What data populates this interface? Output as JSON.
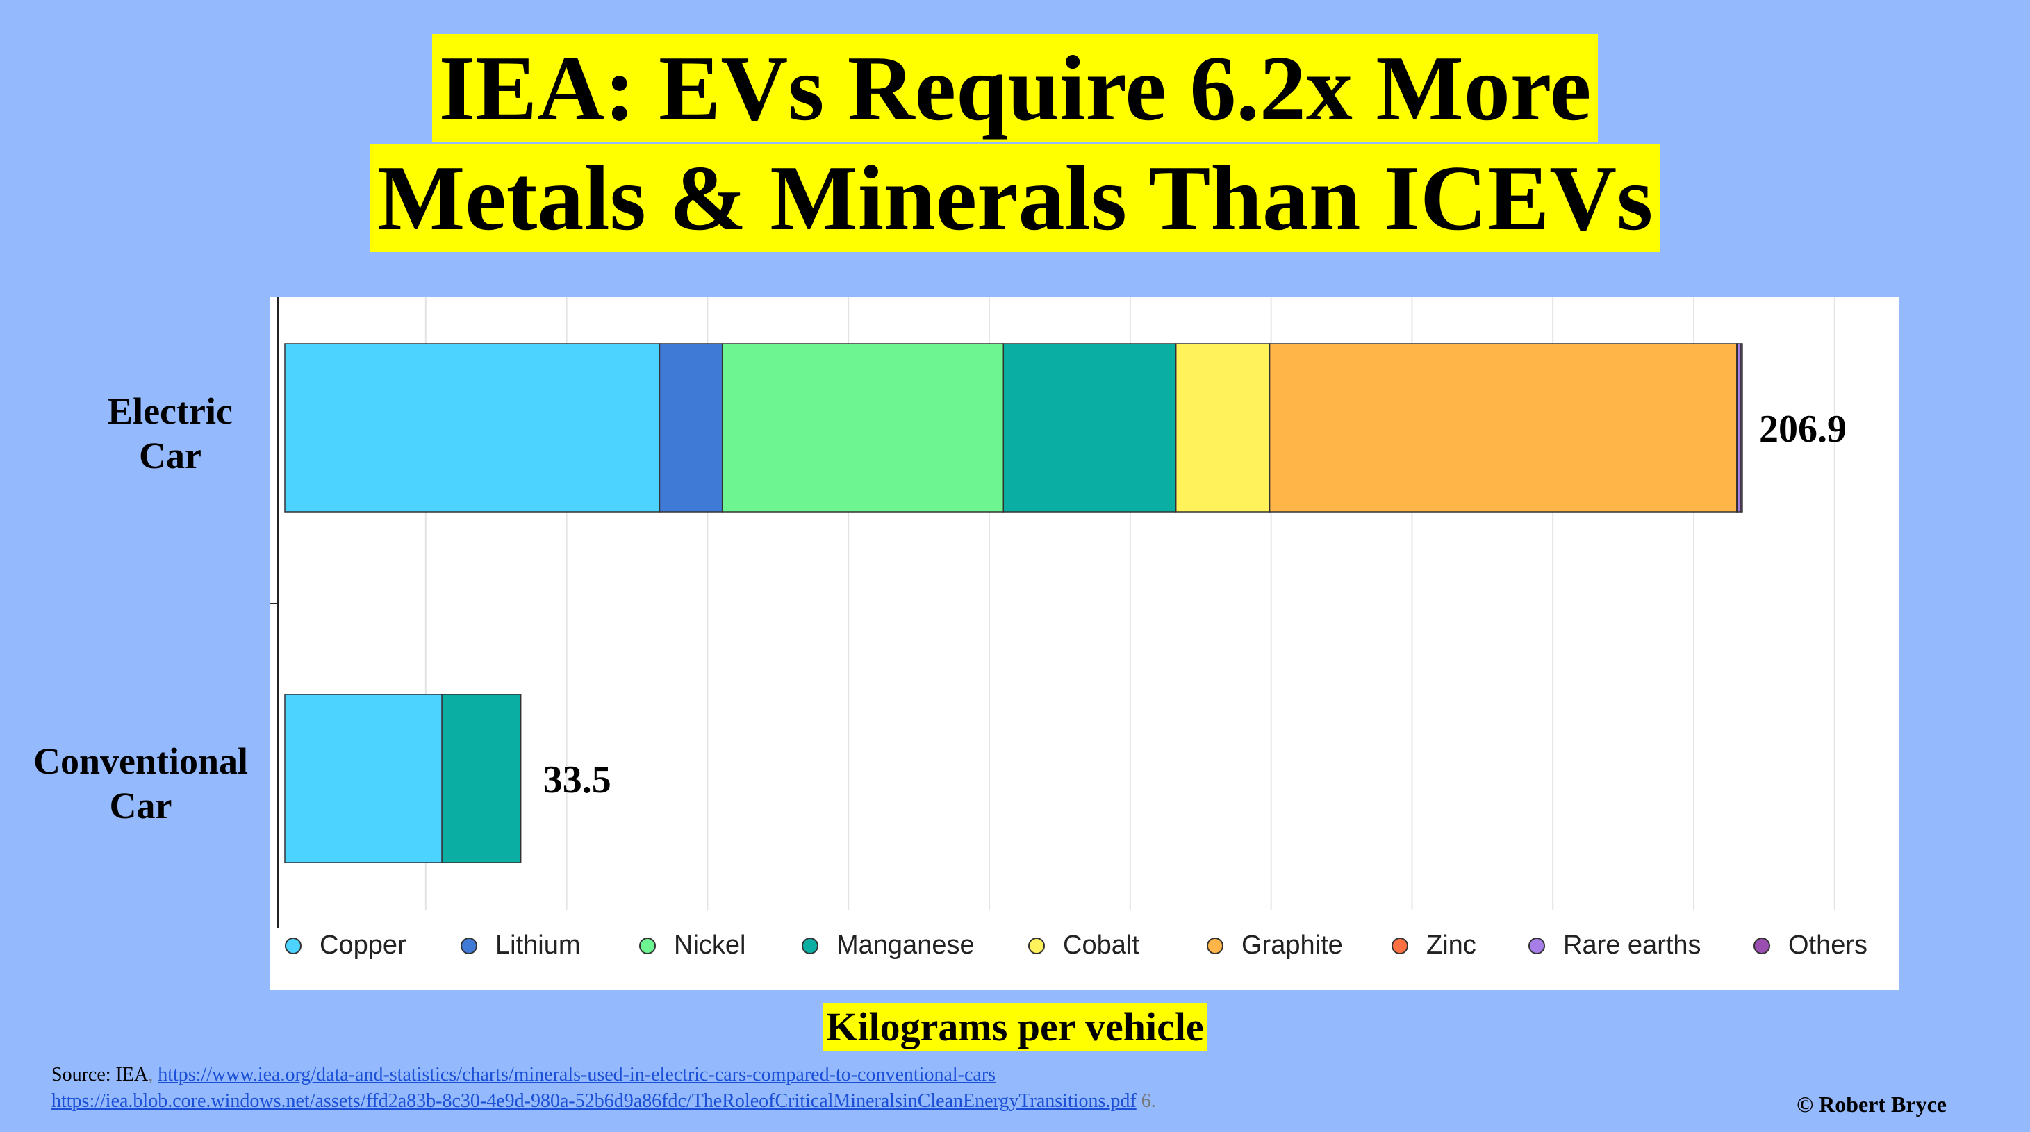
{
  "title": {
    "line1": "IEA: EVs Require 6.2x More",
    "line2": "Metals & Minerals Than ICEVs"
  },
  "chart_data": {
    "type": "bar",
    "orientation": "horizontal",
    "stacked": true,
    "categories": [
      "Electric Car",
      "Conventional Car"
    ],
    "category_lines": [
      [
        "Electric",
        "Car"
      ],
      [
        "Conventional",
        "Car"
      ]
    ],
    "totals": [
      206.9,
      33.5
    ],
    "total_labels": [
      "206.9",
      "33.5"
    ],
    "xlabel": "Kilograms per vehicle",
    "xlim": [
      0,
      220
    ],
    "grid": true,
    "legend_position": "bottom",
    "series": [
      {
        "name": "Copper",
        "color": "#4cd3ff",
        "values": [
          53.2,
          22.3
        ]
      },
      {
        "name": "Lithium",
        "color": "#3f7bd6",
        "values": [
          8.9,
          0
        ]
      },
      {
        "name": "Nickel",
        "color": "#6df592",
        "values": [
          39.9,
          0
        ]
      },
      {
        "name": "Manganese",
        "color": "#0baea2",
        "values": [
          24.5,
          11.2
        ]
      },
      {
        "name": "Cobalt",
        "color": "#fff25a",
        "values": [
          13.3,
          0
        ]
      },
      {
        "name": "Graphite",
        "color": "#ffb547",
        "values": [
          66.3,
          0
        ]
      },
      {
        "name": "Zinc",
        "color": "#ff7043",
        "values": [
          0.1,
          0
        ]
      },
      {
        "name": "Rare earths",
        "color": "#a77ee8",
        "values": [
          0.5,
          0
        ]
      },
      {
        "name": "Others",
        "color": "#9a4fb0",
        "values": [
          0.2,
          0
        ]
      }
    ]
  },
  "footer": {
    "source_prefix": "Source: IEA",
    "source_sep": ",",
    "url1": "https://www.iea.org/data-and-statistics/charts/minerals-used-in-electric-cars-compared-to-conventional-cars",
    "url2": "https://iea.blob.core.windows.net/assets/ffd2a83b-8c30-4e9d-980a-52b6d9a86fdc/TheRoleofCriticalMineralsinCleanEnergyTransitions.pdf",
    "url2_suffix": " 6.",
    "copyright": "© Robert Bryce"
  }
}
